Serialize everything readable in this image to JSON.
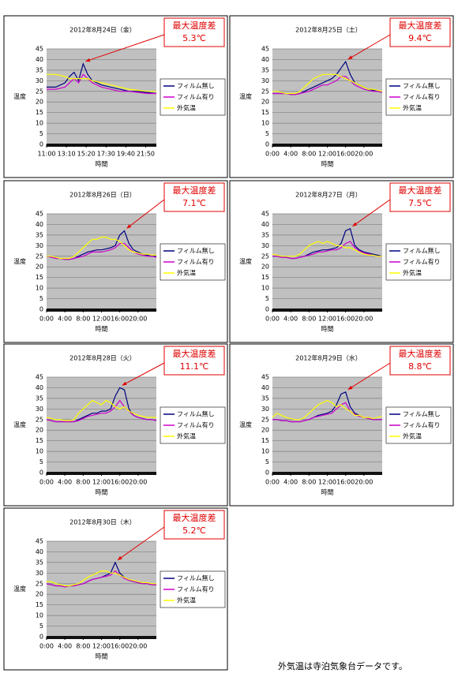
{
  "chart_data": [
    {
      "type": "line",
      "title": "2012年8月24日（金）",
      "annotation": [
        "最大温度差",
        "5.3℃"
      ],
      "ylabel": "温度",
      "xlabel": "時間",
      "xlim": [
        11,
        23
      ],
      "ylim": [
        0,
        45
      ],
      "yticks": [
        0,
        5,
        10,
        15,
        20,
        25,
        30,
        35,
        40,
        45
      ],
      "xticks": [
        {
          "value": 11,
          "label": "11:00"
        },
        {
          "value": 13.167,
          "label": "13:10"
        },
        {
          "value": 15.333,
          "label": "15:20"
        },
        {
          "value": 17.5,
          "label": "17:30"
        },
        {
          "value": 19.667,
          "label": "19:40"
        },
        {
          "value": 21.833,
          "label": "21:50"
        }
      ],
      "x": [
        11,
        12,
        13,
        13.5,
        14,
        14.5,
        15,
        15.5,
        16,
        17,
        18,
        19,
        20,
        21,
        22,
        23
      ],
      "series": [
        {
          "name": "フィルム無し",
          "color": "#000080",
          "values": [
            27,
            27,
            29,
            32,
            34,
            30,
            38,
            33,
            30,
            28,
            27,
            26,
            25,
            25,
            24.5,
            24
          ]
        },
        {
          "name": "フィルム有り",
          "color": "#cc00cc",
          "values": [
            26,
            26,
            27,
            29,
            31,
            29,
            33,
            31,
            29,
            27,
            26,
            25,
            25,
            24.5,
            24,
            24
          ]
        },
        {
          "name": "外気温",
          "color": "#ffff00",
          "values": [
            33,
            33,
            32,
            31,
            31,
            31,
            31,
            31,
            30,
            29,
            28,
            27,
            26,
            25.5,
            25,
            25
          ]
        }
      ]
    },
    {
      "type": "line",
      "title": "2012年8月25日（土）",
      "annotation": [
        "最大温度差",
        "9.4℃"
      ],
      "ylabel": "温度",
      "xlabel": "時間",
      "xlim": [
        0,
        24
      ],
      "ylim": [
        0,
        45
      ],
      "yticks": [
        0,
        5,
        10,
        15,
        20,
        25,
        30,
        35,
        40,
        45
      ],
      "xticks": [
        {
          "value": 0,
          "label": "0:00"
        },
        {
          "value": 4,
          "label": "4:00"
        },
        {
          "value": 8,
          "label": "8:00"
        },
        {
          "value": 12,
          "label": "12:00"
        },
        {
          "value": 16,
          "label": "16:00"
        },
        {
          "value": 20,
          "label": "20:00"
        }
      ],
      "x": [
        0,
        1,
        2,
        3,
        4,
        5,
        6,
        7,
        8,
        9,
        10,
        11,
        12,
        13,
        14,
        15,
        16,
        17,
        18,
        19,
        20,
        21,
        22,
        23,
        24
      ],
      "series": [
        {
          "name": "フィルム無し",
          "color": "#000080",
          "values": [
            24,
            24,
            24,
            24,
            23.5,
            23.5,
            24,
            25,
            26,
            27,
            28,
            29,
            30,
            31,
            33,
            36,
            39,
            33,
            29,
            28,
            27,
            26,
            25.5,
            25,
            24.5
          ]
        },
        {
          "name": "フィルム有り",
          "color": "#cc00cc",
          "values": [
            24,
            24,
            24,
            24,
            23.5,
            23.5,
            24,
            24.5,
            25,
            26,
            27,
            28,
            28,
            29,
            30,
            32,
            32,
            30,
            28,
            27,
            26,
            25.5,
            25,
            25,
            24.5
          ]
        },
        {
          "name": "外気温",
          "color": "#ffff00",
          "values": [
            25,
            25,
            24.5,
            24,
            24,
            24,
            25,
            27,
            29,
            31,
            32,
            33,
            33,
            33,
            33,
            32,
            31,
            30,
            29,
            28,
            27,
            26,
            26,
            25.5,
            25
          ]
        }
      ]
    },
    {
      "type": "line",
      "title": "2012年8月26日（日）",
      "annotation": [
        "最大温度差",
        "7.1℃"
      ],
      "ylabel": "温度",
      "xlabel": "時間",
      "xlim": [
        0,
        24
      ],
      "ylim": [
        0,
        45
      ],
      "yticks": [
        0,
        5,
        10,
        15,
        20,
        25,
        30,
        35,
        40,
        45
      ],
      "xticks": [
        {
          "value": 0,
          "label": "0:00"
        },
        {
          "value": 4,
          "label": "4:00"
        },
        {
          "value": 8,
          "label": "8:00"
        },
        {
          "value": 12,
          "label": "12:00"
        },
        {
          "value": 16,
          "label": "16:00"
        },
        {
          "value": 20,
          "label": "20:00"
        }
      ],
      "x": [
        0,
        1,
        2,
        3,
        4,
        5,
        6,
        7,
        8,
        9,
        10,
        11,
        12,
        13,
        14,
        15,
        16,
        17,
        18,
        19,
        20,
        21,
        22,
        23,
        24
      ],
      "series": [
        {
          "name": "フィルム無し",
          "color": "#000080",
          "values": [
            25,
            24.5,
            24,
            24,
            23.5,
            23.5,
            24,
            25,
            26,
            27,
            27.5,
            28,
            28,
            28.5,
            29,
            30,
            35,
            37,
            31,
            28,
            27,
            26,
            25.5,
            25,
            25
          ]
        },
        {
          "name": "フィルム有り",
          "color": "#cc00cc",
          "values": [
            25,
            24.5,
            24,
            24,
            23.5,
            23.5,
            24,
            24.5,
            25,
            26,
            27,
            27,
            27,
            27.5,
            28,
            29,
            31,
            31,
            29,
            27,
            26,
            25.5,
            25,
            25,
            24.5
          ]
        },
        {
          "name": "外気温",
          "color": "#ffff00",
          "values": [
            25,
            25,
            24.5,
            24,
            24,
            24,
            25,
            27,
            29,
            31,
            33,
            33,
            34,
            34,
            33,
            33,
            32,
            30,
            28,
            27,
            26.5,
            26,
            26,
            25.5,
            25.5
          ]
        }
      ]
    },
    {
      "type": "line",
      "title": "2012年8月27日（月）",
      "annotation": [
        "最大温度差",
        "7.5℃"
      ],
      "ylabel": "温度",
      "xlabel": "時間",
      "xlim": [
        0,
        24
      ],
      "ylim": [
        0,
        45
      ],
      "yticks": [
        0,
        5,
        10,
        15,
        20,
        25,
        30,
        35,
        40,
        45
      ],
      "xticks": [
        {
          "value": 0,
          "label": "0:00"
        },
        {
          "value": 4,
          "label": "4:00"
        },
        {
          "value": 8,
          "label": "8:00"
        },
        {
          "value": 12,
          "label": "12:00"
        },
        {
          "value": 16,
          "label": "16:00"
        },
        {
          "value": 20,
          "label": "20:00"
        }
      ],
      "x": [
        0,
        1,
        2,
        3,
        4,
        5,
        6,
        7,
        8,
        9,
        10,
        11,
        12,
        13,
        14,
        15,
        16,
        17,
        18,
        19,
        20,
        21,
        22,
        23,
        24
      ],
      "series": [
        {
          "name": "フィルム無し",
          "color": "#000080",
          "values": [
            25,
            25,
            24.5,
            24.5,
            24,
            24,
            24.5,
            25,
            26,
            27,
            27.5,
            28,
            28,
            28.5,
            29,
            31,
            37,
            38,
            30,
            28,
            27,
            26.5,
            26,
            25.5,
            25
          ]
        },
        {
          "name": "フィルム有り",
          "color": "#cc00cc",
          "values": [
            25,
            25,
            24.5,
            24.5,
            24,
            24,
            24.5,
            25,
            25.5,
            26,
            27,
            27,
            27.5,
            28,
            28,
            29,
            31,
            32,
            29,
            27.5,
            26.5,
            26,
            25.5,
            25,
            25
          ]
        },
        {
          "name": "外気温",
          "color": "#ffff00",
          "values": [
            26,
            25.5,
            25,
            25,
            25,
            25,
            26,
            28,
            30,
            31,
            32,
            31,
            32,
            31,
            30,
            30,
            29,
            29,
            28,
            27,
            26,
            25.5,
            25.5,
            25,
            25
          ]
        }
      ]
    },
    {
      "type": "line",
      "title": "2012年8月28日（火）",
      "annotation": [
        "最大温度差",
        "11.1℃"
      ],
      "ylabel": "温度",
      "xlabel": "時間",
      "xlim": [
        0,
        24
      ],
      "ylim": [
        0,
        45
      ],
      "yticks": [
        0,
        5,
        10,
        15,
        20,
        25,
        30,
        35,
        40,
        45
      ],
      "xticks": [
        {
          "value": 0,
          "label": "0:00"
        },
        {
          "value": 4,
          "label": "4:00"
        },
        {
          "value": 8,
          "label": "8:00"
        },
        {
          "value": 12,
          "label": "12:00"
        },
        {
          "value": 16,
          "label": "16:00"
        },
        {
          "value": 20,
          "label": "20:00"
        }
      ],
      "x": [
        0,
        1,
        2,
        3,
        4,
        5,
        6,
        7,
        8,
        9,
        10,
        11,
        12,
        13,
        14,
        15,
        16,
        17,
        18,
        19,
        20,
        21,
        22,
        23,
        24
      ],
      "series": [
        {
          "name": "フィルム無し",
          "color": "#000080",
          "values": [
            25,
            24.5,
            24,
            24,
            24,
            24,
            24,
            25,
            26,
            27,
            28,
            28,
            29,
            29,
            30,
            36,
            40,
            39,
            30,
            27,
            26,
            25.5,
            25,
            25,
            24.5
          ]
        },
        {
          "name": "フィルム有り",
          "color": "#cc00cc",
          "values": [
            25,
            24.5,
            24,
            24,
            24,
            24,
            24,
            24.5,
            25.5,
            26.5,
            27,
            27.5,
            28,
            28,
            29,
            31,
            34,
            31,
            29,
            27,
            26,
            25.5,
            25,
            25,
            24.5
          ]
        },
        {
          "name": "外気温",
          "color": "#ffff00",
          "values": [
            26,
            25.5,
            25,
            25,
            24.5,
            24.5,
            25,
            28,
            30,
            32,
            34,
            33,
            32,
            34,
            33,
            31,
            30,
            31,
            29,
            28,
            27,
            26.5,
            26,
            26,
            26
          ]
        }
      ]
    },
    {
      "type": "line",
      "title": "2012年8月29日（水）",
      "annotation": [
        "最大温度差",
        "8.8℃"
      ],
      "ylabel": "温度",
      "xlabel": "時間",
      "xlim": [
        0,
        24
      ],
      "ylim": [
        0,
        45
      ],
      "yticks": [
        0,
        5,
        10,
        15,
        20,
        25,
        30,
        35,
        40,
        45
      ],
      "xticks": [
        {
          "value": 0,
          "label": "0:00"
        },
        {
          "value": 4,
          "label": "4:00"
        },
        {
          "value": 8,
          "label": "8:00"
        },
        {
          "value": 12,
          "label": "12:00"
        },
        {
          "value": 16,
          "label": "16:00"
        },
        {
          "value": 20,
          "label": "20:00"
        }
      ],
      "x": [
        0,
        1,
        2,
        3,
        4,
        5,
        6,
        7,
        8,
        9,
        10,
        11,
        12,
        13,
        14,
        15,
        16,
        17,
        18,
        19,
        20,
        21,
        22,
        23,
        24
      ],
      "series": [
        {
          "name": "フィルム無し",
          "color": "#000080",
          "values": [
            25,
            25,
            24.5,
            24.5,
            24,
            24,
            24,
            24.5,
            25,
            26,
            27,
            27.5,
            28,
            29,
            32,
            37,
            38,
            31,
            28,
            27,
            26,
            25.5,
            25,
            25,
            25
          ]
        },
        {
          "name": "フィルム有り",
          "color": "#cc00cc",
          "values": [
            25,
            25,
            24.5,
            24.5,
            24,
            24,
            24,
            24.5,
            25,
            26,
            26.5,
            27,
            27.5,
            28,
            30,
            32,
            33,
            29,
            27.5,
            26.5,
            26,
            25.5,
            25,
            25,
            25
          ]
        },
        {
          "name": "外気温",
          "color": "#ffff00",
          "values": [
            26,
            28,
            27,
            26,
            25.5,
            25,
            25,
            26,
            28,
            30,
            32,
            33,
            34,
            33,
            31,
            32,
            30,
            29,
            27,
            27,
            26,
            26,
            25.5,
            26,
            26.5
          ]
        }
      ]
    },
    {
      "type": "line",
      "title": "2012年8月30日（木）",
      "annotation": [
        "最大温度差",
        "5.2℃"
      ],
      "ylabel": "温度",
      "xlabel": "時間",
      "xlim": [
        0,
        24
      ],
      "ylim": [
        0,
        45
      ],
      "yticks": [
        0,
        5,
        10,
        15,
        20,
        25,
        30,
        35,
        40,
        45
      ],
      "xticks": [
        {
          "value": 0,
          "label": "0:00"
        },
        {
          "value": 4,
          "label": "4:00"
        },
        {
          "value": 8,
          "label": "8:00"
        },
        {
          "value": 12,
          "label": "12:00"
        },
        {
          "value": 16,
          "label": "16:00"
        },
        {
          "value": 20,
          "label": "20:00"
        }
      ],
      "x": [
        0,
        1,
        2,
        3,
        4,
        5,
        6,
        7,
        8,
        9,
        10,
        11,
        12,
        13,
        14,
        15,
        16,
        17,
        18,
        19,
        20,
        21,
        22,
        23,
        24
      ],
      "series": [
        {
          "name": "フィルム無し",
          "color": "#000080",
          "values": [
            25,
            24.5,
            24,
            24,
            23.5,
            24,
            24,
            24.5,
            25,
            26,
            27,
            27.5,
            28,
            29,
            30,
            35,
            30,
            28,
            27,
            26,
            25.5,
            25,
            25,
            24.5,
            24.5
          ]
        },
        {
          "name": "フィルム有り",
          "color": "#cc00cc",
          "values": [
            25,
            24.5,
            24,
            24,
            23.5,
            24,
            24,
            24.5,
            25,
            26,
            27,
            27.5,
            28,
            28.5,
            29,
            31,
            29,
            27.5,
            26.5,
            26,
            25.5,
            25,
            25,
            24.5,
            24.5
          ]
        },
        {
          "name": "外気温",
          "color": "#ffff00",
          "values": [
            26,
            26,
            25,
            24.5,
            24,
            24,
            24.5,
            25,
            26.5,
            28,
            29,
            30,
            31,
            31,
            30,
            30,
            29,
            28,
            27,
            26.5,
            26,
            25.5,
            25.5,
            25,
            25
          ]
        }
      ]
    }
  ],
  "footnote": "外気温は寺泊気象台データです。"
}
